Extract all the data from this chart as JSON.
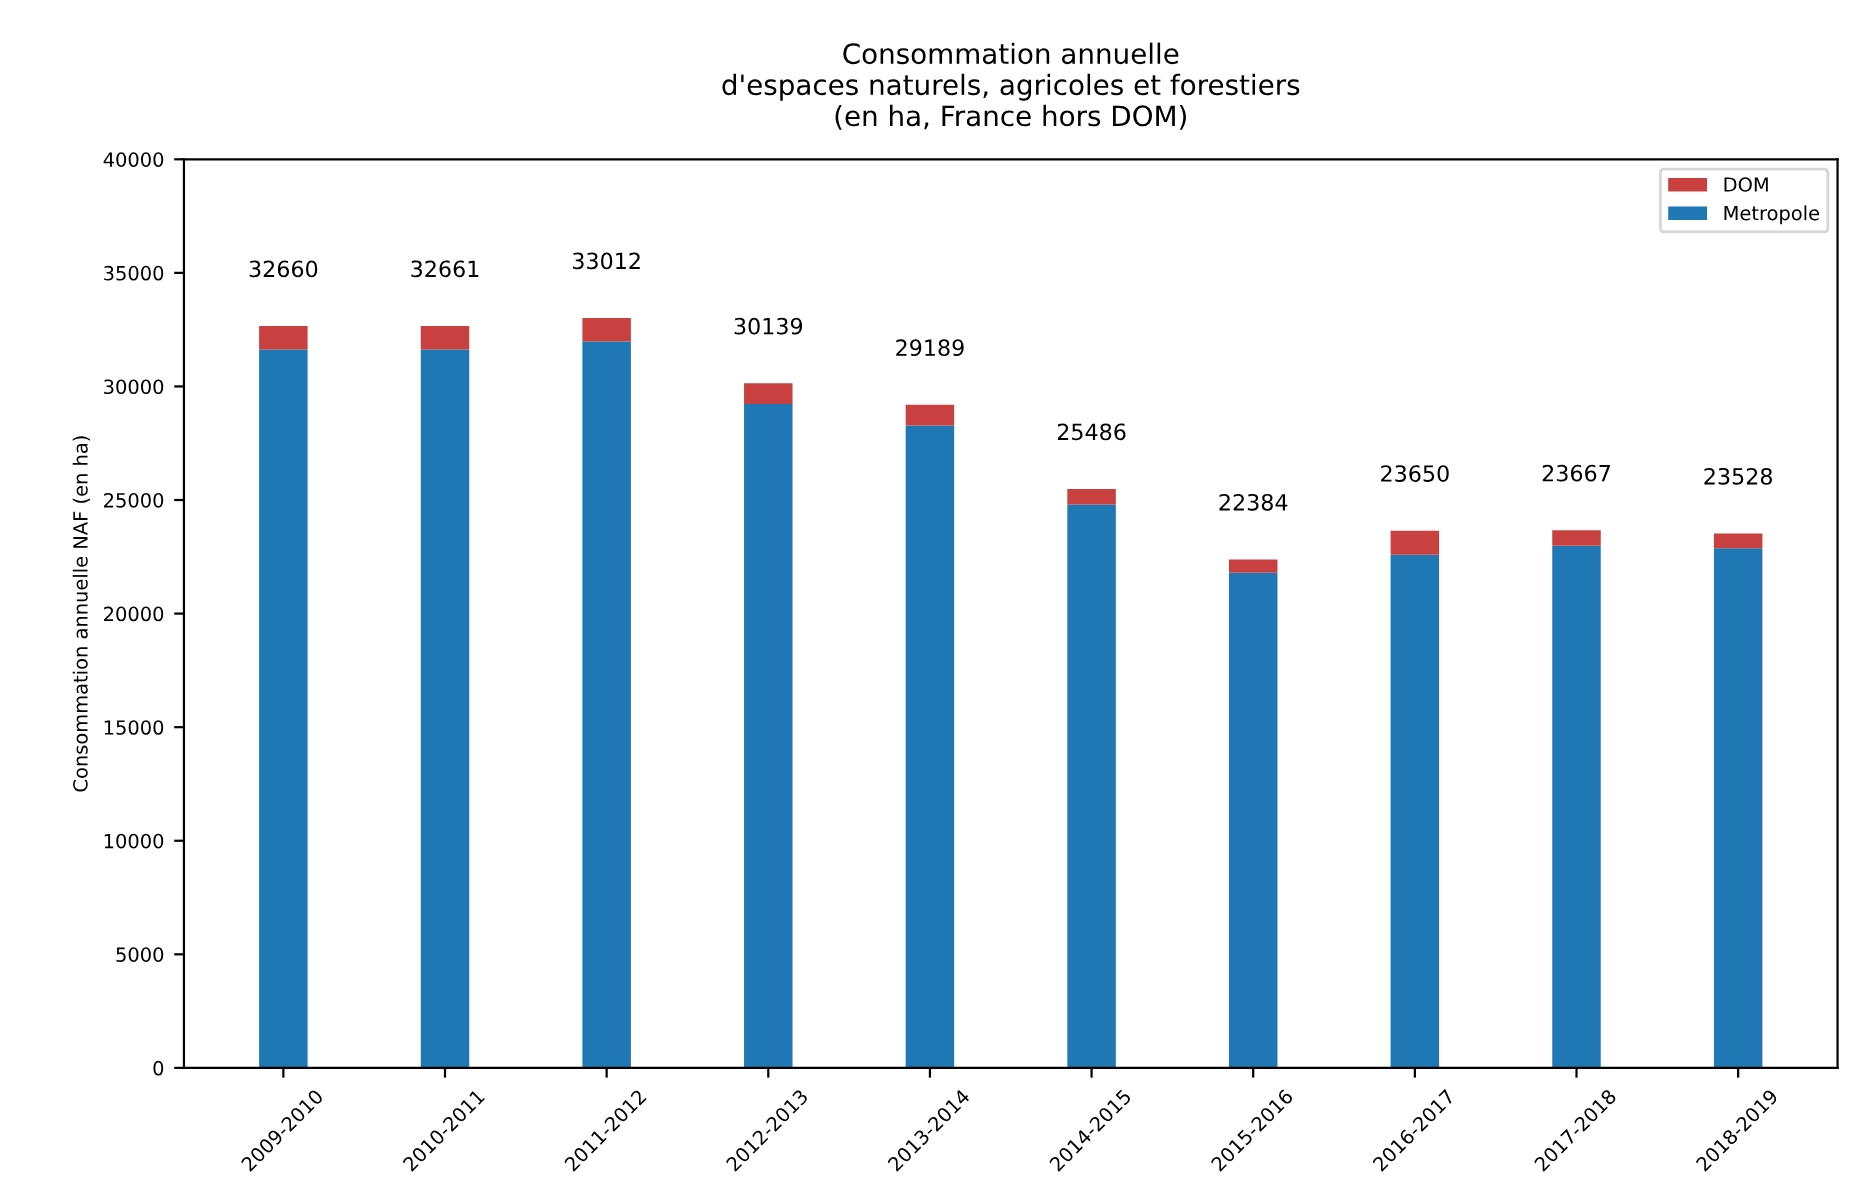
{
  "chart_data": {
    "type": "bar",
    "title": "Consommation annuelle\nd'espaces naturels, agricoles et forestiers\n(en ha, France hors DOM)",
    "ylabel": "Consommation annuelle NAF (en ha)",
    "categories": [
      "2009-2010",
      "2010-2011",
      "2011-2012",
      "2012-2013",
      "2013-2014",
      "2014-2015",
      "2015-2016",
      "2016-2017",
      "2017-2018",
      "2018-2019"
    ],
    "stacked": true,
    "series": [
      {
        "name": "Metropole",
        "color": "#1f77b4",
        "values": [
          31630,
          31631,
          31982,
          29229,
          28279,
          24806,
          21794,
          22590,
          22987,
          22878
        ]
      },
      {
        "name": "DOM",
        "color": "#c8403f",
        "values": [
          1030,
          1030,
          1030,
          910,
          910,
          680,
          590,
          1060,
          680,
          650
        ]
      }
    ],
    "totals": [
      "32660",
      "32661",
      "33012",
      "30139",
      "29189",
      "25486",
      "22384",
      "23650",
      "23667",
      "23528"
    ],
    "ylim": [
      0,
      40000
    ],
    "yticks": [
      0,
      5000,
      10000,
      15000,
      20000,
      25000,
      30000,
      35000,
      40000
    ],
    "grid": false,
    "legend": "top right"
  }
}
